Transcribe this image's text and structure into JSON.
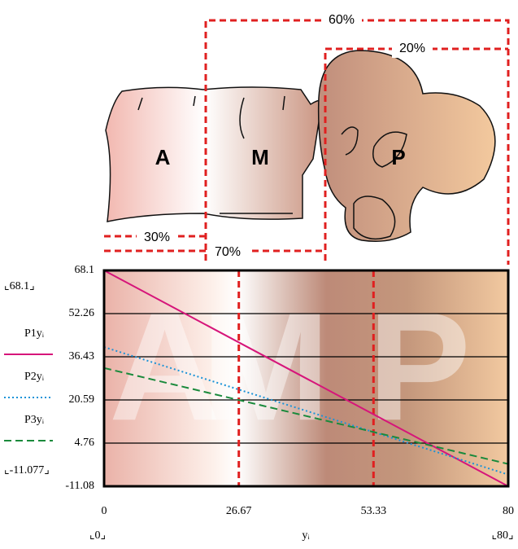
{
  "illustration": {
    "percent_labels": [
      "60%",
      "20%",
      "30%",
      "70%"
    ],
    "letters": [
      "A",
      "M",
      "P"
    ]
  },
  "chart_data": {
    "type": "line",
    "x": [
      0,
      80
    ],
    "series": [
      {
        "name": "P1yᵢ",
        "color": "#d6157a",
        "style": "solid",
        "values": [
          68.1,
          -11.08
        ]
      },
      {
        "name": "P2yᵢ",
        "color": "#1b93d8",
        "style": "dotted",
        "values": [
          40,
          -6.8
        ]
      },
      {
        "name": "P3yᵢ",
        "color": "#1a8a3c",
        "style": "dashed",
        "values": [
          32.3,
          -2.9
        ]
      }
    ],
    "xlim": [
      0,
      80
    ],
    "xticks": [
      0,
      26.67,
      53.33,
      80
    ],
    "ylim": [
      -11.08,
      68.1
    ],
    "yticks": [
      68.1,
      52.26,
      36.43,
      20.59,
      4.76,
      -11.08
    ],
    "grid": true,
    "region_letters": [
      "A",
      "M",
      "P"
    ],
    "y_range_labels": [
      "⌞68.1⌟",
      "⌞-11.077⌟"
    ],
    "x_range_labels": [
      "⌞0⌟",
      "⌞80⌟"
    ],
    "xlabel": "yᵢ"
  }
}
